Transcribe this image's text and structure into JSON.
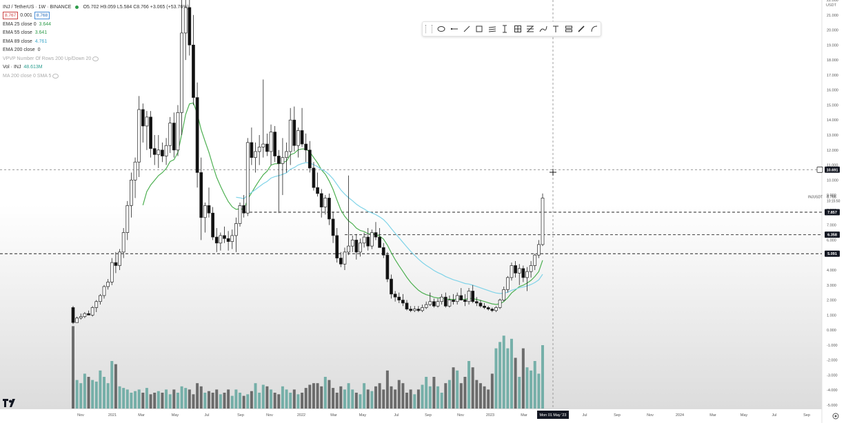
{
  "header": {
    "symbol": "INJ / TetherUS · 1W · BINANCE",
    "ohlc": "O5.702 H9.059 L5.584 C8.766 +3.065 (+53.76%)",
    "bid": "8.767",
    "spread": "0.001",
    "ask": "8.768"
  },
  "indicators": [
    {
      "label": "EMA 25 close 0",
      "value": "3.644",
      "color": "#2e9c4a"
    },
    {
      "label": "EMA 55 close",
      "value": "3.641",
      "color": "#2e9c4a"
    },
    {
      "label": "EMA 89 close",
      "value": "4.761",
      "color": "#3aa6c8"
    },
    {
      "label": "EMA 200 close",
      "value": "0",
      "color": "#444444"
    },
    {
      "label": "VPVP Number Of Rows 200 Up/Down 20",
      "value": "",
      "color": "#aaaaaa"
    },
    {
      "label": "Vol · INJ",
      "value": "48.613M",
      "color": "#2a9d8f"
    },
    {
      "label": "MA 200 close 0 SMA 5",
      "value": "",
      "color": "#aaaaaa"
    }
  ],
  "toolbar": {
    "tools": [
      "ellipse-tool-icon",
      "horizontal-line-tool-icon",
      "trend-line-tool-icon",
      "rectangle-tool-icon",
      "parallel-channel-tool-icon",
      "text-cursor-tool-icon",
      "crosshair-grid-tool-icon",
      "fib-tool-icon",
      "brush-tool-icon",
      "text-tool-icon",
      "measure-tool-icon",
      "pen-tool-icon",
      "curve-tool-icon"
    ]
  },
  "price_axis": {
    "currency": "USDT",
    "ticks": [
      "22.000",
      "21.000",
      "20.000",
      "19.000",
      "18.000",
      "17.000",
      "16.000",
      "15.000",
      "14.000",
      "13.000",
      "12.000",
      "11.000",
      "10.000",
      "9.000",
      "8.000",
      "7.000",
      "6.000",
      "5.000",
      "4.000",
      "3.000",
      "2.000",
      "1.000",
      "0.000",
      "-1.000",
      "-2.000",
      "-3.000",
      "-4.000",
      "-5.000"
    ],
    "labels": {
      "crosshair": "10.691",
      "symbol_tag": "INJUSDT",
      "last_price": "8.766",
      "countdown": "10:15:50",
      "level_1": "7.857",
      "level_2": "6.358",
      "level_3": "5.091"
    }
  },
  "time_axis": {
    "ticks": [
      "Nov",
      "2021",
      "Mar",
      "May",
      "Jul",
      "Sep",
      "Nov",
      "2022",
      "Mar",
      "May",
      "Jul",
      "Sep",
      "Nov",
      "2023",
      "Mar",
      "Jul",
      "Sep",
      "Nov",
      "2024",
      "Mar",
      "May",
      "Jul",
      "Sep"
    ],
    "crosshair_label": "Mon 01 May '23"
  },
  "colors": {
    "up": "#ffffff",
    "down": "#111111",
    "volume": "#5aa39a",
    "volume_down": "#444444",
    "ema_green": "#4caf50",
    "ema_blue": "#7fd3e8"
  },
  "chart_data": {
    "type": "candlestick",
    "title": "INJ / TetherUS · 1W · BINANCE",
    "ylim": [
      -5,
      22
    ],
    "candles": [
      [
        1.5,
        1.6,
        0.4,
        0.5
      ],
      [
        0.5,
        0.9,
        0.5,
        0.8
      ],
      [
        0.8,
        1.1,
        0.7,
        0.9
      ],
      [
        0.9,
        1.2,
        0.8,
        1.1
      ],
      [
        1.1,
        1.3,
        1.0,
        1.0
      ],
      [
        1.0,
        1.6,
        0.9,
        1.5
      ],
      [
        1.5,
        2.0,
        1.2,
        1.9
      ],
      [
        1.9,
        2.4,
        1.7,
        2.3
      ],
      [
        2.3,
        3.0,
        2.1,
        2.9
      ],
      [
        2.9,
        3.4,
        2.7,
        3.2
      ],
      [
        3.2,
        4.8,
        3.0,
        4.5
      ],
      [
        4.5,
        5.2,
        3.8,
        4.3
      ],
      [
        4.3,
        5.4,
        4.0,
        5.2
      ],
      [
        5.2,
        6.8,
        4.8,
        6.5
      ],
      [
        6.5,
        8.6,
        6.0,
        8.3
      ],
      [
        8.3,
        10.5,
        7.5,
        10.0
      ],
      [
        10.0,
        11.5,
        8.8,
        11.2
      ],
      [
        11.2,
        15.6,
        10.2,
        14.7
      ],
      [
        14.7,
        15.1,
        12.5,
        13.6
      ],
      [
        13.6,
        14.6,
        12.0,
        14.2
      ],
      [
        14.2,
        14.6,
        11.5,
        12.1
      ],
      [
        12.1,
        13.0,
        11.0,
        11.7
      ],
      [
        11.7,
        13.0,
        10.8,
        12.0
      ],
      [
        12.0,
        12.5,
        11.2,
        11.6
      ],
      [
        11.6,
        12.8,
        11.0,
        12.3
      ],
      [
        12.3,
        14.2,
        11.8,
        13.8
      ],
      [
        13.8,
        14.5,
        11.5,
        12.0
      ],
      [
        12.0,
        15.0,
        11.6,
        14.5
      ],
      [
        14.5,
        22.5,
        13.0,
        19.8
      ],
      [
        19.8,
        22.5,
        18.0,
        21.5
      ],
      [
        21.5,
        22.5,
        18.3,
        19.0
      ],
      [
        19.0,
        21.0,
        15.0,
        15.5
      ],
      [
        15.5,
        16.5,
        9.5,
        10.5
      ],
      [
        10.5,
        11.5,
        6.0,
        7.5
      ],
      [
        7.5,
        8.5,
        6.5,
        8.3
      ],
      [
        8.3,
        9.5,
        7.5,
        7.8
      ],
      [
        7.8,
        8.2,
        6.0,
        6.2
      ],
      [
        6.2,
        6.8,
        5.2,
        5.8
      ],
      [
        5.8,
        6.5,
        5.3,
        6.3
      ],
      [
        6.3,
        6.9,
        5.8,
        6.1
      ],
      [
        6.1,
        6.6,
        5.3,
        5.9
      ],
      [
        5.9,
        6.7,
        5.4,
        6.3
      ],
      [
        6.3,
        7.5,
        5.2,
        7.1
      ],
      [
        7.1,
        8.5,
        6.9,
        8.3
      ],
      [
        8.3,
        9.0,
        7.5,
        7.8
      ],
      [
        7.8,
        12.8,
        7.6,
        12.5
      ],
      [
        12.5,
        13.5,
        11.0,
        11.5
      ],
      [
        11.5,
        12.5,
        10.5,
        11.9
      ],
      [
        11.9,
        13.0,
        11.0,
        12.2
      ],
      [
        12.2,
        16.7,
        11.5,
        12.4
      ],
      [
        12.4,
        13.1,
        11.6,
        11.9
      ],
      [
        11.9,
        13.7,
        11.0,
        13.2
      ],
      [
        13.2,
        13.6,
        11.2,
        11.6
      ],
      [
        11.6,
        12.0,
        7.8,
        11.1
      ],
      [
        11.1,
        12.8,
        9.0,
        11.5
      ],
      [
        11.5,
        12.5,
        10.5,
        11.9
      ],
      [
        11.9,
        14.8,
        11.0,
        14.0
      ],
      [
        14.0,
        14.9,
        11.9,
        12.3
      ],
      [
        12.3,
        13.5,
        11.5,
        13.3
      ],
      [
        13.3,
        14.8,
        12.2,
        12.4
      ],
      [
        12.4,
        13.1,
        11.2,
        12.0
      ],
      [
        12.0,
        12.6,
        10.5,
        10.8
      ],
      [
        10.8,
        11.2,
        9.3,
        9.5
      ],
      [
        9.5,
        10.5,
        8.9,
        9.1
      ],
      [
        9.1,
        9.4,
        7.5,
        8.2
      ],
      [
        8.2,
        9.0,
        7.7,
        8.8
      ],
      [
        8.8,
        9.1,
        7.0,
        7.4
      ],
      [
        7.4,
        7.9,
        5.8,
        6.3
      ],
      [
        6.3,
        6.8,
        4.5,
        4.8
      ],
      [
        4.8,
        5.2,
        4.2,
        4.4
      ],
      [
        4.4,
        5.5,
        4.0,
        5.2
      ],
      [
        5.2,
        10.3,
        5.0,
        5.6
      ],
      [
        5.6,
        6.3,
        5.2,
        6.0
      ],
      [
        6.0,
        6.4,
        4.7,
        5.2
      ],
      [
        5.2,
        6.1,
        4.9,
        5.8
      ],
      [
        5.8,
        6.5,
        5.5,
        6.2
      ],
      [
        6.2,
        6.8,
        5.3,
        5.6
      ],
      [
        5.6,
        6.7,
        5.4,
        6.5
      ],
      [
        6.5,
        7.2,
        6.0,
        6.2
      ],
      [
        6.2,
        6.8,
        5.5,
        5.5
      ],
      [
        5.5,
        5.8,
        4.8,
        5.0
      ],
      [
        5.0,
        5.2,
        3.2,
        3.4
      ],
      [
        3.4,
        3.7,
        2.1,
        2.4
      ],
      [
        2.4,
        2.6,
        1.9,
        2.2
      ],
      [
        2.2,
        2.5,
        1.8,
        2.0
      ],
      [
        2.0,
        2.4,
        1.6,
        1.8
      ],
      [
        1.8,
        2.0,
        1.3,
        1.4
      ],
      [
        1.4,
        1.6,
        1.2,
        1.3
      ],
      [
        1.3,
        1.6,
        1.2,
        1.4
      ],
      [
        1.4,
        1.6,
        1.2,
        1.3
      ],
      [
        1.3,
        1.7,
        1.2,
        1.5
      ],
      [
        1.5,
        1.9,
        1.4,
        1.7
      ],
      [
        1.7,
        2.5,
        1.6,
        1.9
      ],
      [
        1.9,
        2.1,
        1.5,
        1.6
      ],
      [
        1.6,
        2.1,
        1.5,
        1.9
      ],
      [
        1.9,
        2.4,
        1.7,
        2.2
      ],
      [
        2.2,
        2.5,
        1.5,
        1.6
      ],
      [
        1.6,
        2.3,
        1.5,
        2.0
      ],
      [
        2.0,
        2.4,
        1.7,
        1.9
      ],
      [
        1.9,
        2.5,
        1.7,
        2.3
      ],
      [
        2.3,
        2.8,
        2.0,
        2.0
      ],
      [
        2.0,
        2.4,
        1.6,
        1.9
      ],
      [
        1.9,
        2.8,
        1.7,
        2.6
      ],
      [
        2.6,
        3.0,
        1.8,
        1.9
      ],
      [
        1.9,
        2.2,
        1.6,
        1.8
      ],
      [
        1.8,
        2.0,
        1.5,
        1.6
      ],
      [
        1.6,
        1.8,
        1.4,
        1.5
      ],
      [
        1.5,
        1.6,
        1.3,
        1.4
      ],
      [
        1.4,
        1.5,
        1.2,
        1.3
      ],
      [
        1.3,
        1.6,
        1.2,
        1.5
      ],
      [
        1.5,
        2.1,
        1.4,
        2.0
      ],
      [
        2.0,
        2.9,
        1.9,
        2.7
      ],
      [
        2.7,
        3.6,
        2.5,
        3.5
      ],
      [
        3.5,
        4.5,
        3.3,
        4.3
      ],
      [
        4.3,
        4.6,
        3.5,
        3.8
      ],
      [
        3.8,
        4.4,
        3.0,
        4.1
      ],
      [
        4.1,
        4.3,
        3.2,
        3.5
      ],
      [
        3.5,
        4.2,
        2.6,
        3.9
      ],
      [
        3.9,
        4.6,
        3.5,
        4.3
      ],
      [
        4.3,
        5.1,
        4.0,
        5.0
      ],
      [
        5.0,
        6.0,
        4.8,
        5.7
      ],
      [
        5.7,
        9.1,
        5.6,
        8.8
      ]
    ]
  }
}
